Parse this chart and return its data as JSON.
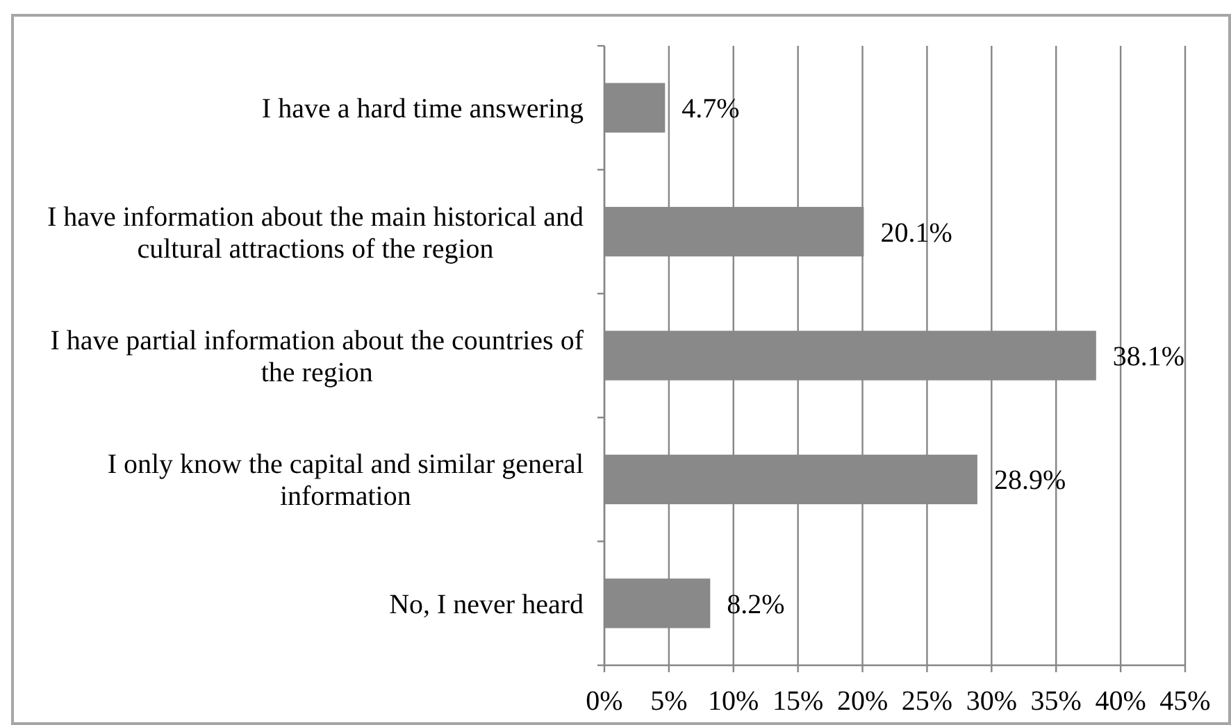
{
  "chart_data": {
    "type": "bar",
    "orientation": "horizontal",
    "categories": [
      "I have a hard time answering",
      "I have information about the main historical and cultural attractions of the region",
      "I have partial information about the countries of the region",
      "I only know the capital and similar general information",
      "No, I never heard"
    ],
    "values": [
      4.7,
      20.1,
      38.1,
      28.9,
      8.2
    ],
    "value_labels": [
      "4.7%",
      "20.1%",
      "38.1%",
      "28.9%",
      "8.2%"
    ],
    "color": "#898989",
    "xlim": [
      0,
      45
    ],
    "xticks": [
      {
        "value": 0,
        "label": "0%"
      },
      {
        "value": 5,
        "label": "5%"
      },
      {
        "value": 10,
        "label": "10%"
      },
      {
        "value": 15,
        "label": "15%"
      },
      {
        "value": 20,
        "label": "20%"
      },
      {
        "value": 25,
        "label": "25%"
      },
      {
        "value": 30,
        "label": "30%"
      },
      {
        "value": 35,
        "label": "35%"
      },
      {
        "value": 40,
        "label": "40%"
      },
      {
        "value": 45,
        "label": "45%"
      }
    ],
    "grid": "x"
  }
}
